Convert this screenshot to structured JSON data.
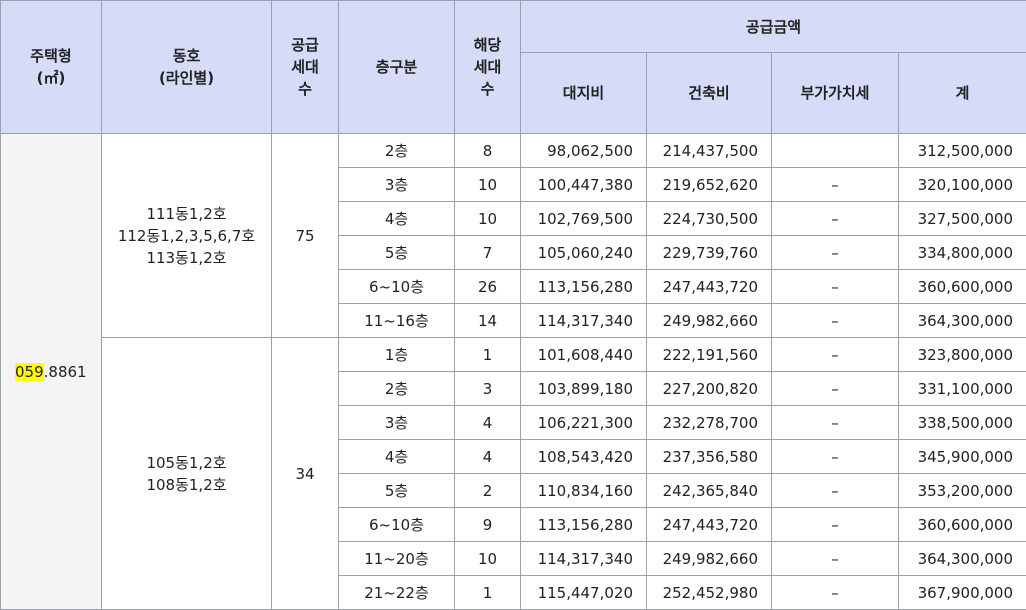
{
  "headers": {
    "housing_type": [
      "주택형",
      "(㎡)"
    ],
    "building": [
      "동호",
      "(라인별)"
    ],
    "supply_units": [
      "공급",
      "세대",
      "수"
    ],
    "floor_group": "층구분",
    "units": [
      "해당",
      "세대",
      "수"
    ],
    "supply_price": "공급금액",
    "land": "대지비",
    "building_cost": "건축비",
    "vat": "부가가치세",
    "total": "계"
  },
  "housing_type": {
    "highlight": "059",
    "rest": ".8861",
    "highlight_color": "#ffff00"
  },
  "groups": [
    {
      "buildings": [
        "111동1,2호",
        "112동1,2,3,5,6,7호",
        "113동1,2호"
      ],
      "supply_units": "75",
      "rows": [
        {
          "floor": "2층",
          "units": "8",
          "land": "98,062,500",
          "building": "214,437,500",
          "vat": "",
          "total": "312,500,000"
        },
        {
          "floor": "3층",
          "units": "10",
          "land": "100,447,380",
          "building": "219,652,620",
          "vat": "–",
          "total": "320,100,000"
        },
        {
          "floor": "4층",
          "units": "10",
          "land": "102,769,500",
          "building": "224,730,500",
          "vat": "–",
          "total": "327,500,000"
        },
        {
          "floor": "5층",
          "units": "7",
          "land": "105,060,240",
          "building": "229,739,760",
          "vat": "–",
          "total": "334,800,000"
        },
        {
          "floor": "6~10층",
          "units": "26",
          "land": "113,156,280",
          "building": "247,443,720",
          "vat": "–",
          "total": "360,600,000"
        },
        {
          "floor": "11~16층",
          "units": "14",
          "land": "114,317,340",
          "building": "249,982,660",
          "vat": "–",
          "total": "364,300,000"
        }
      ]
    },
    {
      "buildings": [
        "105동1,2호",
        "108동1,2호"
      ],
      "supply_units": "34",
      "rows": [
        {
          "floor": "1층",
          "units": "1",
          "land": "101,608,440",
          "building": "222,191,560",
          "vat": "–",
          "total": "323,800,000"
        },
        {
          "floor": "2층",
          "units": "3",
          "land": "103,899,180",
          "building": "227,200,820",
          "vat": "–",
          "total": "331,100,000"
        },
        {
          "floor": "3층",
          "units": "4",
          "land": "106,221,300",
          "building": "232,278,700",
          "vat": "–",
          "total": "338,500,000"
        },
        {
          "floor": "4층",
          "units": "4",
          "land": "108,543,420",
          "building": "237,356,580",
          "vat": "–",
          "total": "345,900,000"
        },
        {
          "floor": "5층",
          "units": "2",
          "land": "110,834,160",
          "building": "242,365,840",
          "vat": "–",
          "total": "353,200,000"
        },
        {
          "floor": "6~10층",
          "units": "9",
          "land": "113,156,280",
          "building": "247,443,720",
          "vat": "–",
          "total": "360,600,000"
        },
        {
          "floor": "11~20층",
          "units": "10",
          "land": "114,317,340",
          "building": "249,982,660",
          "vat": "–",
          "total": "364,300,000"
        },
        {
          "floor": "21~22층",
          "units": "1",
          "land": "115,447,020",
          "building": "252,452,980",
          "vat": "–",
          "total": "367,900,000"
        }
      ]
    }
  ]
}
